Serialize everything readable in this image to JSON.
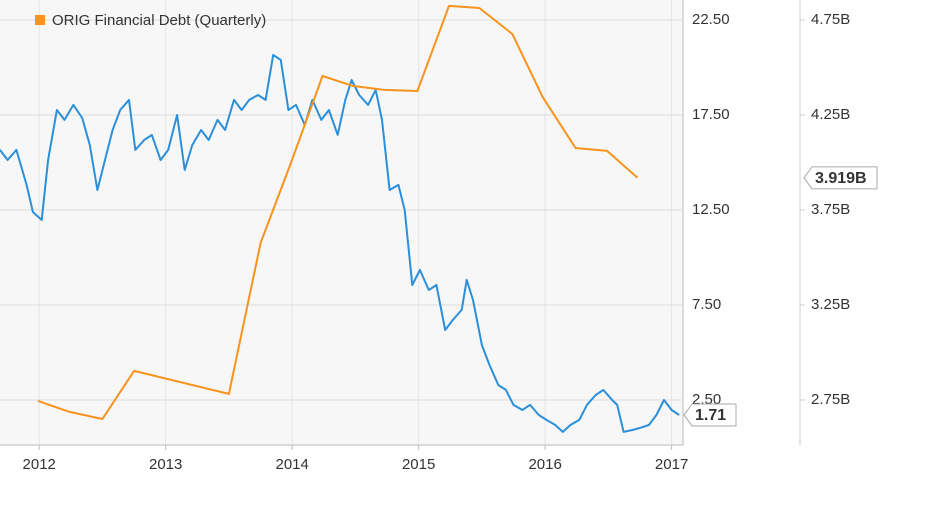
{
  "chart_data": {
    "type": "line",
    "legend": "top-left",
    "grid": true,
    "xlim": [
      2011.69,
      2017.09
    ],
    "xticks": [
      2012,
      2013,
      2014,
      2015,
      2016,
      2017
    ],
    "ylim": [
      0.13,
      23.55
    ],
    "yticks": [
      {
        "value": 22.5,
        "label": "22.50"
      },
      {
        "value": 17.5,
        "label": "17.50"
      },
      {
        "value": 12.5,
        "label": "12.50"
      },
      {
        "value": 7.5,
        "label": "7.50"
      },
      {
        "value": 2.5,
        "label": "2.50"
      }
    ],
    "y2lim": [
      2.513,
      4.855
    ],
    "y2ticks": [
      {
        "value": 4.75,
        "label": "4.75B"
      },
      {
        "value": 4.25,
        "label": "4.25B"
      },
      {
        "value": 3.75,
        "label": "3.75B"
      },
      {
        "value": 3.25,
        "label": "3.25B"
      },
      {
        "value": 2.75,
        "label": "2.75B"
      }
    ],
    "series": [
      {
        "color": "#2b8fda",
        "last_value_label": "1.71",
        "x": [
          2011.69,
          2011.75,
          2011.82,
          2011.9,
          2011.95,
          2012.02,
          2012.07,
          2012.14,
          2012.2,
          2012.27,
          2012.34,
          2012.4,
          2012.46,
          2012.52,
          2012.58,
          2012.64,
          2012.71,
          2012.76,
          2012.83,
          2012.89,
          2012.96,
          2013.02,
          2013.09,
          2013.15,
          2013.21,
          2013.28,
          2013.34,
          2013.41,
          2013.47,
          2013.54,
          2013.6,
          2013.66,
          2013.73,
          2013.79,
          2013.85,
          2013.91,
          2013.97,
          2014.03,
          2014.1,
          2014.16,
          2014.23,
          2014.29,
          2014.36,
          2014.42,
          2014.47,
          2014.53,
          2014.6,
          2014.66,
          2014.71,
          2014.77,
          2014.84,
          2014.89,
          2014.95,
          2015.01,
          2015.08,
          2015.14,
          2015.21,
          2015.27,
          2015.34,
          2015.38,
          2015.43,
          2015.5,
          2015.56,
          2015.63,
          2015.69,
          2015.75,
          2015.82,
          2015.88,
          2015.95,
          2016.01,
          2016.08,
          2016.14,
          2016.2,
          2016.27,
          2016.33,
          2016.4,
          2016.46,
          2016.53,
          2016.57,
          2016.62,
          2016.69,
          2016.75,
          2016.82,
          2016.88,
          2016.94,
          2017.0,
          2017.06
        ],
        "values": [
          15.66,
          15.13,
          15.66,
          13.82,
          12.39,
          11.97,
          15.13,
          17.76,
          17.24,
          18.03,
          17.34,
          15.92,
          13.55,
          15.13,
          16.71,
          17.76,
          18.29,
          15.66,
          16.18,
          16.45,
          15.13,
          15.66,
          17.5,
          14.61,
          15.92,
          16.71,
          16.18,
          17.24,
          16.71,
          18.29,
          17.76,
          18.29,
          18.55,
          18.29,
          20.66,
          20.39,
          17.76,
          18.03,
          16.97,
          18.29,
          17.24,
          17.76,
          16.45,
          18.29,
          19.34,
          18.55,
          18.03,
          18.82,
          17.24,
          13.55,
          13.82,
          12.5,
          8.55,
          9.34,
          8.29,
          8.55,
          6.18,
          6.71,
          7.24,
          8.82,
          7.76,
          5.39,
          4.34,
          3.29,
          3.03,
          2.24,
          1.97,
          2.24,
          1.71,
          1.45,
          1.18,
          0.82,
          1.18,
          1.45,
          2.24,
          2.76,
          3.03,
          2.5,
          2.24,
          0.82,
          0.92,
          1.03,
          1.18,
          1.71,
          2.5,
          1.97,
          1.71
        ]
      },
      {
        "name": "ORIG Financial Debt (Quarterly)",
        "color": "#f7931e",
        "axis": "y2",
        "last_value_label": "3.919B",
        "x": [
          2011.99,
          2012.24,
          2012.5,
          2012.75,
          2013.5,
          2013.75,
          2013.99,
          2014.24,
          2014.48,
          2014.73,
          2014.99,
          2015.24,
          2015.48,
          2015.74,
          2015.98,
          2016.24,
          2016.49,
          2016.73
        ],
        "values": [
          2.745,
          2.687,
          2.65,
          2.903,
          2.782,
          3.576,
          3.997,
          4.455,
          4.403,
          4.382,
          4.376,
          4.824,
          4.813,
          4.676,
          4.345,
          4.076,
          4.061,
          3.919
        ]
      }
    ]
  }
}
